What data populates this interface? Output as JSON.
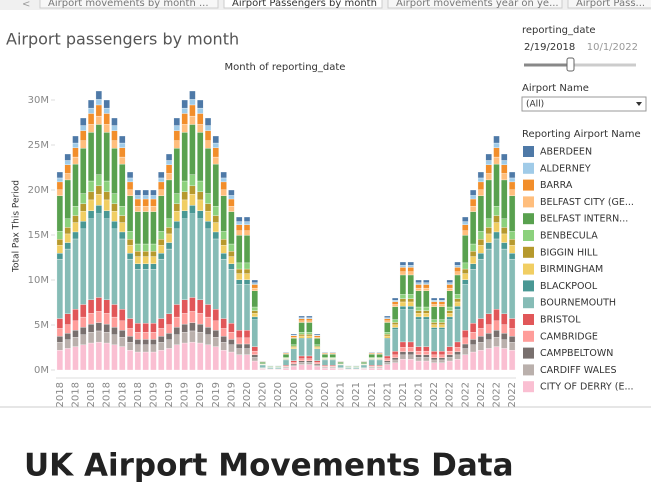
{
  "tabs": [
    "Airport movements by month ...",
    "Airport Passengers by month",
    "Airport movements year on ye...",
    "Airport Pass..."
  ],
  "filters": {
    "date_title": "reporting_date",
    "date_start": "2/19/2018",
    "date_end": "10/1/2022",
    "airport_title": "Airport Name",
    "airport_value": "(All)"
  },
  "heading": "UK Airport Movements Data",
  "chart_data": {
    "type": "stacked_bar",
    "title": "Airport passengers by month",
    "x_label": "Month of reporting_date",
    "y_label": "Total Pax This Period",
    "legend_title": "Reporting Airport Name",
    "categories": [
      "2018",
      null,
      "2018",
      null,
      "2018",
      null,
      "2018",
      null,
      "2018",
      null,
      "2018",
      null,
      "2019",
      null,
      "2019",
      null,
      "2019",
      null,
      "2019",
      null,
      "2019",
      null,
      "2019",
      null,
      "2020",
      null,
      "2020",
      null,
      "2020",
      null,
      "2020",
      null,
      "2020",
      null,
      "2020",
      null,
      "2021",
      null,
      "2021",
      null,
      "2021",
      null,
      "2021",
      null,
      "2021",
      null,
      "2021",
      null,
      "2022",
      null,
      "2022",
      null,
      "2022",
      null,
      "2022",
      null,
      "2022",
      null,
      "2022"
    ],
    "ylim": [
      0,
      32
    ],
    "yticks": [
      {
        "value": 0,
        "label": "0M"
      },
      {
        "value": 5,
        "label": "5M"
      },
      {
        "value": 10,
        "label": "10M"
      },
      {
        "value": 15,
        "label": "15M"
      },
      {
        "value": 20,
        "label": "20M"
      },
      {
        "value": 25,
        "label": "25M"
      },
      {
        "value": 30,
        "label": "30M"
      }
    ],
    "grid": false,
    "series": [
      {
        "name": "ABERDEEN",
        "color": "#4e79a7",
        "values": [
          0.66,
          0.72,
          0.78,
          0.84,
          0.9,
          0.93,
          0.9,
          0.84,
          0.78,
          0.66,
          0.6,
          0.6,
          0.6,
          0.66,
          0.72,
          0.84,
          0.9,
          0.93,
          0.9,
          0.84,
          0.78,
          0.66,
          0.6,
          0.51,
          0.51,
          0.3,
          0.03,
          0.015,
          0.015,
          0.06,
          0.12,
          0.18,
          0.18,
          0.12,
          0.06,
          0.06,
          0.03,
          0.015,
          0.015,
          0.03,
          0.06,
          0.06,
          0.18,
          0.24,
          0.36,
          0.36,
          0.3,
          0.3,
          0.24,
          0.24,
          0.3,
          0.36,
          0.51,
          0.6,
          0.66,
          0.72,
          0.78,
          0.72,
          0.66
        ]
      },
      {
        "name": "ALDERNEY",
        "color": "#a0cbe8",
        "values": [
          0.44,
          0.48,
          0.52,
          0.56,
          0.6,
          0.62,
          0.6,
          0.56,
          0.52,
          0.44,
          0.4,
          0.4,
          0.4,
          0.44,
          0.48,
          0.56,
          0.6,
          0.62,
          0.6,
          0.56,
          0.52,
          0.44,
          0.4,
          0.34,
          0.34,
          0.2,
          0.02,
          0.01,
          0.01,
          0.04,
          0.08,
          0.12,
          0.12,
          0.08,
          0.04,
          0.04,
          0.02,
          0.01,
          0.01,
          0.02,
          0.04,
          0.04,
          0.12,
          0.16,
          0.24,
          0.24,
          0.2,
          0.2,
          0.16,
          0.16,
          0.2,
          0.24,
          0.34,
          0.4,
          0.44,
          0.48,
          0.52,
          0.48,
          0.44
        ]
      },
      {
        "name": "BARRA",
        "color": "#f28e2b",
        "values": [
          0.88,
          0.96,
          1.04,
          1.12,
          1.2,
          1.24,
          1.2,
          1.12,
          1.04,
          0.88,
          0.8,
          0.8,
          0.8,
          0.88,
          0.96,
          1.12,
          1.2,
          1.24,
          1.2,
          1.12,
          1.04,
          0.88,
          0.8,
          0.68,
          0.68,
          0.4,
          0.04,
          0.02,
          0.02,
          0.08,
          0.16,
          0.24,
          0.24,
          0.16,
          0.08,
          0.08,
          0.04,
          0.02,
          0.02,
          0.04,
          0.08,
          0.08,
          0.24,
          0.32,
          0.48,
          0.48,
          0.4,
          0.4,
          0.32,
          0.32,
          0.4,
          0.48,
          0.68,
          0.8,
          0.88,
          0.96,
          1.04,
          0.96,
          0.88
        ]
      },
      {
        "name": "BELFAST CITY (GE...",
        "color": "#ffbe7d",
        "values": [
          0.66,
          0.72,
          0.78,
          0.84,
          0.9,
          0.93,
          0.9,
          0.84,
          0.78,
          0.66,
          0.6,
          0.6,
          0.6,
          0.66,
          0.72,
          0.84,
          0.9,
          0.93,
          0.9,
          0.84,
          0.78,
          0.66,
          0.6,
          0.51,
          0.51,
          0.3,
          0.03,
          0.015,
          0.015,
          0.06,
          0.12,
          0.18,
          0.18,
          0.12,
          0.06,
          0.06,
          0.03,
          0.015,
          0.015,
          0.03,
          0.06,
          0.06,
          0.18,
          0.24,
          0.36,
          0.36,
          0.3,
          0.3,
          0.24,
          0.24,
          0.3,
          0.36,
          0.51,
          0.6,
          0.66,
          0.72,
          0.78,
          0.72,
          0.66
        ]
      },
      {
        "name": "BELFAST INTERN...",
        "color": "#59a14f",
        "values": [
          3.96,
          4.32,
          4.68,
          5.04,
          5.4,
          5.58,
          5.4,
          5.04,
          4.68,
          3.96,
          3.6,
          3.6,
          3.6,
          3.96,
          4.32,
          5.04,
          5.4,
          5.58,
          5.4,
          5.04,
          4.68,
          3.96,
          3.6,
          3.06,
          3.06,
          1.8,
          0.18,
          0.09,
          0.09,
          0.36,
          0.72,
          1.08,
          1.08,
          0.72,
          0.36,
          0.36,
          0.18,
          0.09,
          0.09,
          0.18,
          0.36,
          0.36,
          1.08,
          1.44,
          2.16,
          2.16,
          1.8,
          1.8,
          1.44,
          1.44,
          1.8,
          2.16,
          3.06,
          3.6,
          3.96,
          4.32,
          4.68,
          4.32,
          3.96
        ]
      },
      {
        "name": "BENBECULA",
        "color": "#8cd17d",
        "values": [
          0.88,
          0.96,
          1.04,
          1.12,
          1.2,
          1.24,
          1.2,
          1.12,
          1.04,
          0.88,
          0.8,
          0.8,
          0.8,
          0.88,
          0.96,
          1.12,
          1.2,
          1.24,
          1.2,
          1.12,
          1.04,
          0.88,
          0.8,
          0.68,
          0.68,
          0.4,
          0.04,
          0.02,
          0.02,
          0.08,
          0.16,
          0.24,
          0.24,
          0.16,
          0.08,
          0.08,
          0.04,
          0.02,
          0.02,
          0.04,
          0.08,
          0.08,
          0.24,
          0.32,
          0.48,
          0.48,
          0.4,
          0.4,
          0.32,
          0.32,
          0.4,
          0.48,
          0.68,
          0.8,
          0.88,
          0.96,
          1.04,
          0.96,
          0.88
        ]
      },
      {
        "name": "BIGGIN HILL",
        "color": "#b6992d",
        "values": [
          0.66,
          0.72,
          0.78,
          0.84,
          0.9,
          0.93,
          0.9,
          0.84,
          0.78,
          0.66,
          0.6,
          0.6,
          0.6,
          0.66,
          0.72,
          0.84,
          0.9,
          0.93,
          0.9,
          0.84,
          0.78,
          0.66,
          0.6,
          0.51,
          0.51,
          0.3,
          0.03,
          0.015,
          0.015,
          0.06,
          0.12,
          0.18,
          0.18,
          0.12,
          0.06,
          0.06,
          0.03,
          0.015,
          0.015,
          0.03,
          0.06,
          0.06,
          0.18,
          0.24,
          0.36,
          0.36,
          0.3,
          0.3,
          0.24,
          0.24,
          0.3,
          0.36,
          0.51,
          0.6,
          0.66,
          0.72,
          0.78,
          0.72,
          0.66
        ]
      },
      {
        "name": "BIRMINGHAM",
        "color": "#f1ce63",
        "values": [
          0.88,
          0.96,
          1.04,
          1.12,
          1.2,
          1.24,
          1.2,
          1.12,
          1.04,
          0.88,
          0.8,
          0.8,
          0.8,
          0.88,
          0.96,
          1.12,
          1.2,
          1.24,
          1.2,
          1.12,
          1.04,
          0.88,
          0.8,
          0.68,
          0.68,
          0.4,
          0.04,
          0.02,
          0.02,
          0.08,
          0.16,
          0.24,
          0.24,
          0.16,
          0.08,
          0.08,
          0.04,
          0.02,
          0.02,
          0.04,
          0.08,
          0.08,
          0.24,
          0.32,
          0.48,
          0.48,
          0.4,
          0.4,
          0.32,
          0.32,
          0.4,
          0.48,
          0.68,
          0.8,
          0.88,
          0.96,
          1.04,
          0.96,
          0.88
        ]
      },
      {
        "name": "BLACKPOOL",
        "color": "#499894",
        "values": [
          0.66,
          0.72,
          0.78,
          0.84,
          0.9,
          0.93,
          0.9,
          0.84,
          0.78,
          0.66,
          0.6,
          0.6,
          0.6,
          0.66,
          0.72,
          0.84,
          0.9,
          0.93,
          0.9,
          0.84,
          0.78,
          0.66,
          0.6,
          0.51,
          0.51,
          0.3,
          0.03,
          0.015,
          0.015,
          0.06,
          0.12,
          0.18,
          0.18,
          0.12,
          0.06,
          0.06,
          0.03,
          0.015,
          0.015,
          0.03,
          0.06,
          0.06,
          0.18,
          0.24,
          0.36,
          0.36,
          0.3,
          0.3,
          0.24,
          0.24,
          0.3,
          0.36,
          0.51,
          0.6,
          0.66,
          0.72,
          0.78,
          0.72,
          0.66
        ]
      },
      {
        "name": "BOURNEMOUTH",
        "color": "#86bcb6",
        "values": [
          6.6,
          7.2,
          7.8,
          8.4,
          9,
          9.3,
          9,
          8.4,
          7.8,
          6.6,
          6,
          6,
          6,
          6.6,
          7.2,
          8.4,
          9,
          9.3,
          9,
          8.4,
          7.8,
          6.6,
          6,
          5.1,
          5.1,
          3,
          0.3,
          0.15,
          0.15,
          0.6,
          1.2,
          1.8,
          1.8,
          1.2,
          0.6,
          0.6,
          0.3,
          0.15,
          0.15,
          0.3,
          0.6,
          0.6,
          1.8,
          2.4,
          3.6,
          3.6,
          3,
          3,
          2.4,
          2.4,
          3,
          3.6,
          5.1,
          6,
          6.6,
          7.2,
          7.8,
          7.2,
          6.6
        ]
      },
      {
        "name": "BRISTOL",
        "color": "#e15759",
        "values": [
          1.1,
          1.2,
          1.3,
          1.4,
          1.5,
          1.55,
          1.5,
          1.4,
          1.3,
          1.1,
          1,
          1,
          1,
          1.1,
          1.2,
          1.4,
          1.5,
          1.55,
          1.5,
          1.4,
          1.3,
          1.1,
          1,
          0.85,
          0.85,
          0.5,
          0.05,
          0.025,
          0.025,
          0.1,
          0.2,
          0.3,
          0.3,
          0.2,
          0.1,
          0.1,
          0.05,
          0.025,
          0.025,
          0.05,
          0.1,
          0.1,
          0.3,
          0.4,
          0.6,
          0.6,
          0.5,
          0.5,
          0.4,
          0.4,
          0.5,
          0.6,
          0.85,
          1,
          1.1,
          1.2,
          1.3,
          1.2,
          1.1
        ]
      },
      {
        "name": "CAMBRIDGE",
        "color": "#ff9d9a",
        "values": [
          0.88,
          0.96,
          1.04,
          1.12,
          1.2,
          1.24,
          1.2,
          1.12,
          1.04,
          0.88,
          0.8,
          0.8,
          0.8,
          0.88,
          0.96,
          1.12,
          1.2,
          1.24,
          1.2,
          1.12,
          1.04,
          0.88,
          0.8,
          0.68,
          0.68,
          0.4,
          0.04,
          0.02,
          0.02,
          0.08,
          0.16,
          0.24,
          0.24,
          0.16,
          0.08,
          0.08,
          0.04,
          0.02,
          0.02,
          0.04,
          0.08,
          0.08,
          0.24,
          0.32,
          0.48,
          0.48,
          0.4,
          0.4,
          0.32,
          0.32,
          0.4,
          0.48,
          0.68,
          0.8,
          0.88,
          0.96,
          1.04,
          0.96,
          0.88
        ]
      },
      {
        "name": "CAMPBELTOWN",
        "color": "#79706e",
        "values": [
          0.66,
          0.72,
          0.78,
          0.84,
          0.9,
          0.93,
          0.9,
          0.84,
          0.78,
          0.66,
          0.6,
          0.6,
          0.6,
          0.66,
          0.72,
          0.84,
          0.9,
          0.93,
          0.9,
          0.84,
          0.78,
          0.66,
          0.6,
          0.51,
          0.51,
          0.3,
          0.03,
          0.015,
          0.015,
          0.06,
          0.12,
          0.18,
          0.18,
          0.12,
          0.06,
          0.06,
          0.03,
          0.015,
          0.015,
          0.03,
          0.06,
          0.06,
          0.18,
          0.24,
          0.36,
          0.36,
          0.3,
          0.3,
          0.24,
          0.24,
          0.3,
          0.36,
          0.51,
          0.6,
          0.66,
          0.72,
          0.78,
          0.72,
          0.66
        ]
      },
      {
        "name": "CARDIFF WALES",
        "color": "#bab0ac",
        "values": [
          0.88,
          0.96,
          1.04,
          1.12,
          1.2,
          1.24,
          1.2,
          1.12,
          1.04,
          0.88,
          0.8,
          0.8,
          0.8,
          0.88,
          0.96,
          1.12,
          1.2,
          1.24,
          1.2,
          1.12,
          1.04,
          0.88,
          0.8,
          0.68,
          0.68,
          0.4,
          0.04,
          0.02,
          0.02,
          0.08,
          0.16,
          0.24,
          0.24,
          0.16,
          0.08,
          0.08,
          0.04,
          0.02,
          0.02,
          0.04,
          0.08,
          0.08,
          0.24,
          0.32,
          0.48,
          0.48,
          0.4,
          0.4,
          0.32,
          0.32,
          0.4,
          0.48,
          0.68,
          0.8,
          0.88,
          0.96,
          1.04,
          0.96,
          0.88
        ]
      },
      {
        "name": "CITY OF DERRY (E...",
        "color": "#fabfd2",
        "values": [
          2.2,
          2.4,
          2.6,
          2.8,
          3,
          3.1,
          3,
          2.8,
          2.6,
          2.2,
          2,
          2,
          2,
          2.2,
          2.4,
          2.8,
          3,
          3.1,
          3,
          2.8,
          2.6,
          2.2,
          2,
          1.7,
          1.7,
          1,
          0.1,
          0.05,
          0.05,
          0.2,
          0.4,
          0.6,
          0.6,
          0.4,
          0.2,
          0.2,
          0.1,
          0.05,
          0.05,
          0.1,
          0.2,
          0.2,
          0.6,
          0.8,
          1.2,
          1.2,
          1,
          1,
          0.8,
          0.8,
          1,
          1.2,
          1.7,
          2,
          2.2,
          2.4,
          2.6,
          2.4,
          2.2
        ]
      }
    ]
  }
}
